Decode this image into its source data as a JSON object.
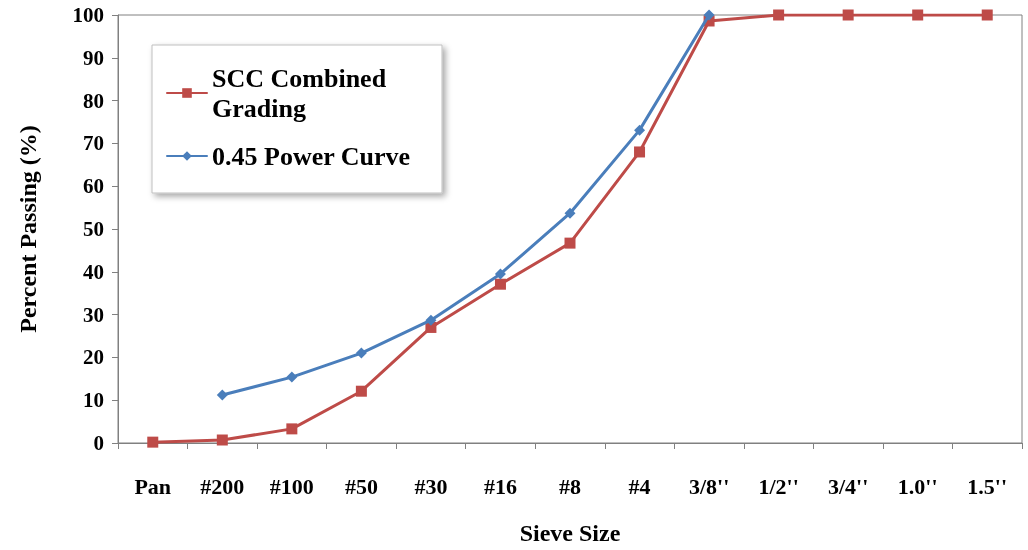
{
  "chart_data": {
    "type": "line",
    "xlabel": "Sieve Size",
    "ylabel": "Percent Passing (%)",
    "categories": [
      "Pan",
      "#200",
      "#100",
      "#50",
      "#30",
      "#16",
      "#8",
      "#4",
      "3/8''",
      "1/2''",
      "3/4''",
      "1.0''",
      "1.5''"
    ],
    "series": [
      {
        "name": "SCC Combined Grading",
        "color": "#be4b48",
        "marker": "square",
        "values": [
          0.2,
          0.7,
          3.3,
          12.1,
          27,
          37.1,
          46.7,
          68,
          98.6,
          100,
          100,
          100,
          100
        ]
      },
      {
        "name": "0.45 Power Curve",
        "color": "#4a7ebb",
        "marker": "diamond",
        "values": [
          null,
          11.2,
          15.4,
          21,
          28.7,
          39.5,
          53.7,
          73.1,
          100,
          null,
          null,
          null,
          null
        ]
      }
    ],
    "ylim": [
      0,
      100
    ],
    "yticks": [
      0,
      10,
      20,
      30,
      40,
      50,
      60,
      70,
      80,
      90,
      100
    ],
    "grid": false,
    "legend": "top left",
    "line_style": "solid"
  }
}
